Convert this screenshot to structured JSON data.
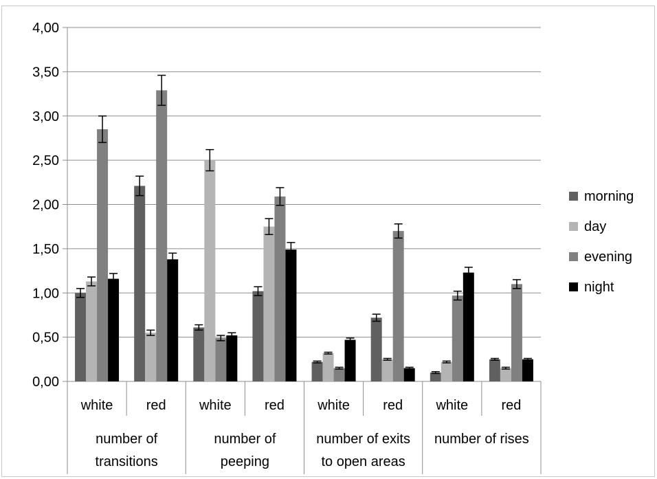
{
  "chart_data": {
    "type": "bar",
    "ylim": [
      0,
      4
    ],
    "y_step": 0.5,
    "y_tick_labels": [
      "0,00",
      "0,50",
      "1,00",
      "1,50",
      "2,00",
      "2,50",
      "3,00",
      "3,50",
      "4,00"
    ],
    "grid": true,
    "legend_position": "right",
    "groups": [
      {
        "label_lines": [
          "number of",
          "transitions"
        ],
        "categories": [
          "white",
          "red"
        ]
      },
      {
        "label_lines": [
          "number of",
          "peeping"
        ],
        "categories": [
          "white",
          "red"
        ]
      },
      {
        "label_lines": [
          "number of exits",
          "to open areas"
        ],
        "categories": [
          "white",
          "red"
        ]
      },
      {
        "label_lines": [
          "number of rises"
        ],
        "categories": [
          "white",
          "red"
        ]
      }
    ],
    "series": [
      {
        "name": "morning",
        "color": "#606060",
        "values": [
          1.0,
          2.21,
          0.61,
          1.02,
          0.22,
          0.72,
          0.1,
          0.25
        ],
        "errors": [
          0.05,
          0.11,
          0.03,
          0.05,
          0.01,
          0.04,
          0.01,
          0.01
        ]
      },
      {
        "name": "day",
        "color": "#b4b4b4",
        "values": [
          1.13,
          0.55,
          2.5,
          1.75,
          0.32,
          0.25,
          0.22,
          0.15
        ],
        "errors": [
          0.05,
          0.03,
          0.12,
          0.09,
          0.01,
          0.01,
          0.01,
          0.01
        ]
      },
      {
        "name": "evening",
        "color": "#808080",
        "values": [
          2.85,
          3.29,
          0.49,
          2.09,
          0.15,
          1.7,
          0.97,
          1.1
        ],
        "errors": [
          0.15,
          0.17,
          0.03,
          0.1,
          0.01,
          0.08,
          0.05,
          0.05
        ]
      },
      {
        "name": "night",
        "color": "#000000",
        "values": [
          1.16,
          1.38,
          0.52,
          1.49,
          0.47,
          0.15,
          1.23,
          0.25
        ],
        "errors": [
          0.06,
          0.07,
          0.03,
          0.08,
          0.02,
          0.01,
          0.06,
          0.01
        ]
      }
    ]
  }
}
